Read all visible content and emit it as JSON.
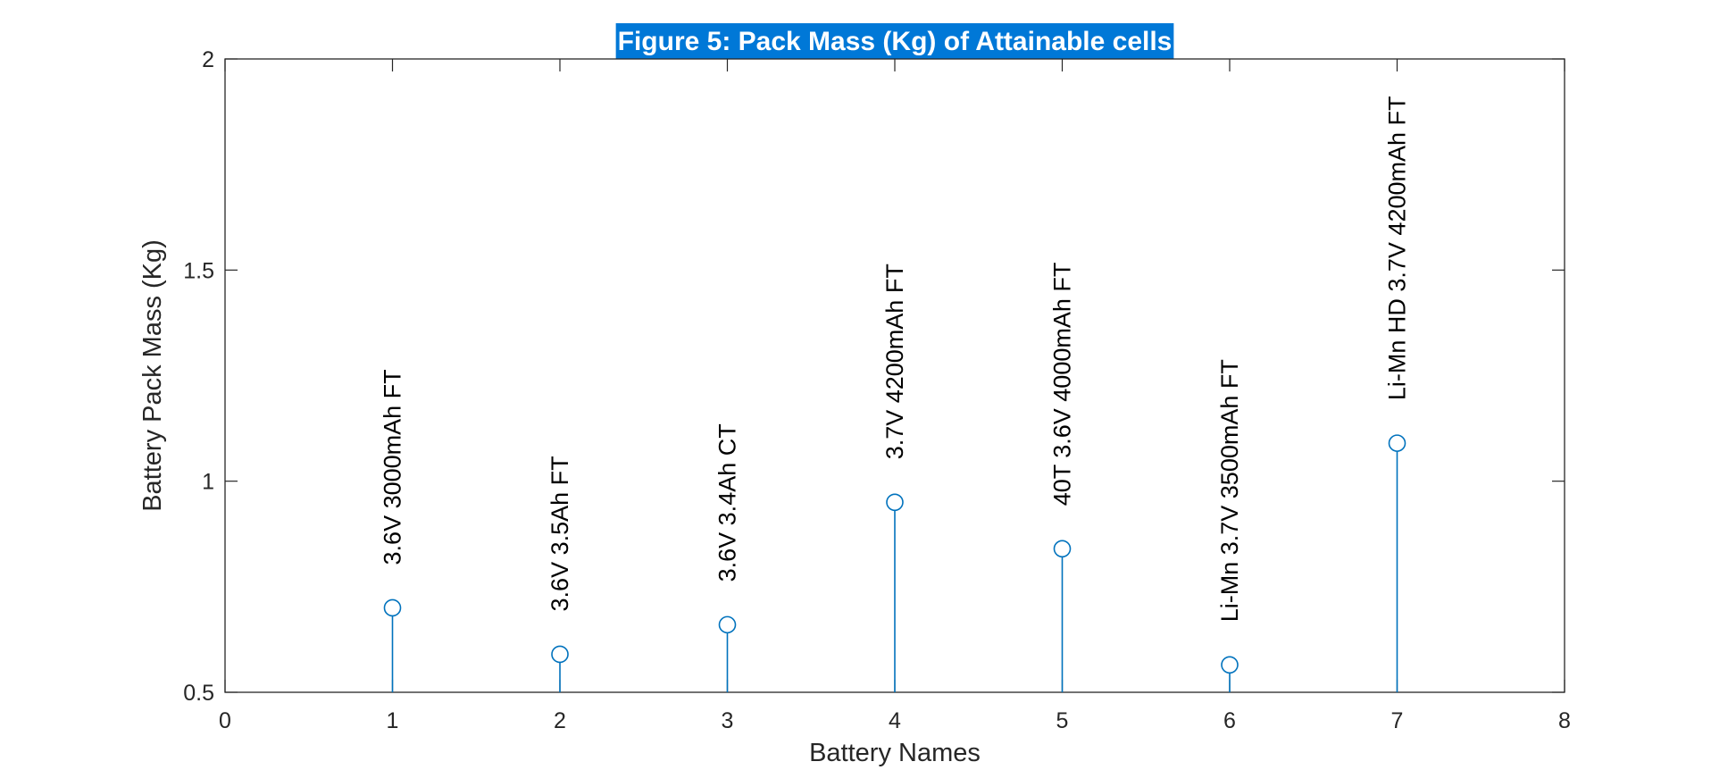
{
  "chart_data": {
    "type": "stem",
    "title": "Figure 5: Pack Mass (Kg) of Attainable cells",
    "xlabel": "Battery Names",
    "ylabel": "Battery Pack Mass (Kg)",
    "xlim": [
      0,
      8
    ],
    "ylim": [
      0.5,
      2
    ],
    "xticks": [
      0,
      1,
      2,
      3,
      4,
      5,
      6,
      7,
      8
    ],
    "yticks": [
      0.5,
      1,
      1.5,
      2
    ],
    "ytick_labels": [
      "0.5",
      "1",
      "1.5",
      "2"
    ],
    "grid": false,
    "points": [
      {
        "x": 1,
        "y": 0.7,
        "label": "3.6V 3000mAh FT"
      },
      {
        "x": 2,
        "y": 0.59,
        "label": "3.6V 3.5Ah FT"
      },
      {
        "x": 3,
        "y": 0.66,
        "label": "3.6V 3.4Ah CT"
      },
      {
        "x": 4,
        "y": 0.95,
        "label": "3.7V 4200mAh FT"
      },
      {
        "x": 5,
        "y": 0.84,
        "label": "40T 3.6V 4000mAh FT"
      },
      {
        "x": 6,
        "y": 0.565,
        "label": "Li-Mn 3.7V 3500mAh FT"
      },
      {
        "x": 7,
        "y": 1.09,
        "label": "Li-Mn HD 3.7V 4200mAh FT"
      }
    ],
    "colors": {
      "stem": "#0072BD",
      "axes": "#262626",
      "title_highlight": "#0078D7"
    }
  }
}
